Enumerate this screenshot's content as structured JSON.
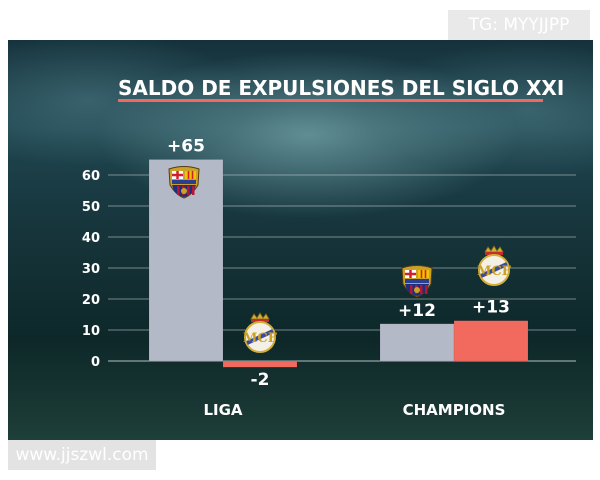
{
  "watermarks": {
    "top": "TG: MYYJJPP",
    "bottom": "www.jjszwl.com"
  },
  "colors": {
    "barcelona": "#b4b9c8",
    "real_madrid": "#f26a5e",
    "grid": "#c8d0d4",
    "text": "#ffffff"
  },
  "icons": {
    "barcelona": "barcelona-crest-icon",
    "real_madrid": "real-madrid-crest-icon"
  },
  "chart_data": {
    "type": "bar",
    "title": "SALDO DE EXPULSIONES DEL SIGLO XXI",
    "categories": [
      "LIGA",
      "CHAMPIONS"
    ],
    "series": [
      {
        "team": "barcelona",
        "values": [
          65,
          12
        ],
        "labels": [
          "+65",
          "+12"
        ]
      },
      {
        "team": "real_madrid",
        "values": [
          -2,
          13
        ],
        "labels": [
          "-2",
          "+13"
        ]
      }
    ],
    "yticks": [
      0,
      10,
      20,
      30,
      40,
      50,
      60
    ],
    "ylim": [
      -4,
      66
    ],
    "grid": true,
    "legend": "none"
  }
}
